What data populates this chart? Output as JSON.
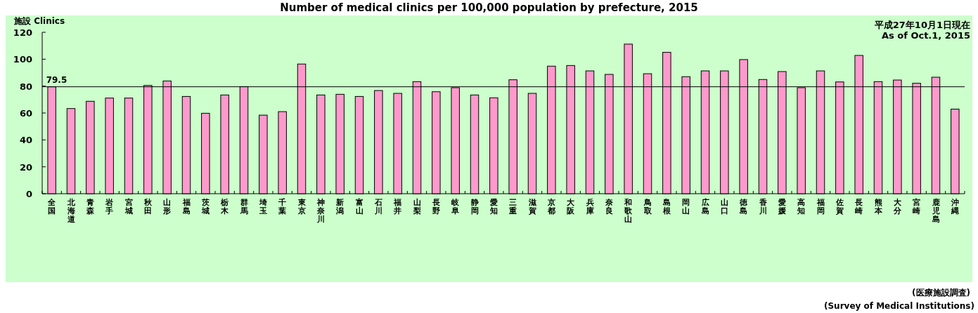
{
  "chart_data": {
    "type": "bar",
    "title": "Number of medical clinics per 100,000 population by prefecture, 2015",
    "ylabel": "施設  Clinics",
    "categories": [
      "全国",
      "北海道",
      "青森",
      "岩手",
      "宮城",
      "秋田",
      "山形",
      "福島",
      "茨城",
      "栃木",
      "群馬",
      "埼玉",
      "千葉",
      "東京",
      "神奈川",
      "新潟",
      "富山",
      "石川",
      "福井",
      "山梨",
      "長野",
      "岐阜",
      "静岡",
      "愛知",
      "三重",
      "滋賀",
      "京都",
      "大阪",
      "兵庫",
      "奈良",
      "和歌山",
      "鳥取",
      "島根",
      "岡山",
      "広島",
      "山口",
      "徳島",
      "香川",
      "愛媛",
      "高知",
      "福岡",
      "佐賀",
      "長崎",
      "熊本",
      "大分",
      "宮崎",
      "鹿児島",
      "沖縄"
    ],
    "values": [
      79.5,
      63.3,
      68.7,
      71.1,
      71.1,
      80.5,
      83.8,
      72.3,
      59.8,
      73.4,
      79.6,
      58.4,
      61.0,
      96.4,
      73.4,
      73.9,
      72.3,
      76.7,
      74.6,
      83.3,
      75.8,
      78.8,
      73.4,
      71.3,
      84.7,
      74.6,
      94.8,
      95.3,
      91.3,
      88.7,
      111.2,
      89.2,
      105.1,
      87.0,
      91.3,
      91.3,
      99.7,
      84.9,
      90.8,
      78.8,
      91.3,
      83.1,
      102.8,
      83.3,
      84.5,
      82.1,
      86.6,
      62.9
    ],
    "color": "#ff99cc",
    "ylim": [
      0,
      120
    ],
    "yticks": [
      0,
      20,
      40,
      60,
      80,
      100,
      120
    ],
    "ref_lines": [
      {
        "axis": "y",
        "value": 79.5,
        "label": "79.5",
        "color": "#000000"
      }
    ],
    "annotations": [
      "平成27年10月1日現在",
      "As of Oct.1, 2015",
      "(医療施設調査)",
      "(Survey of Medical Institutions)"
    ]
  }
}
